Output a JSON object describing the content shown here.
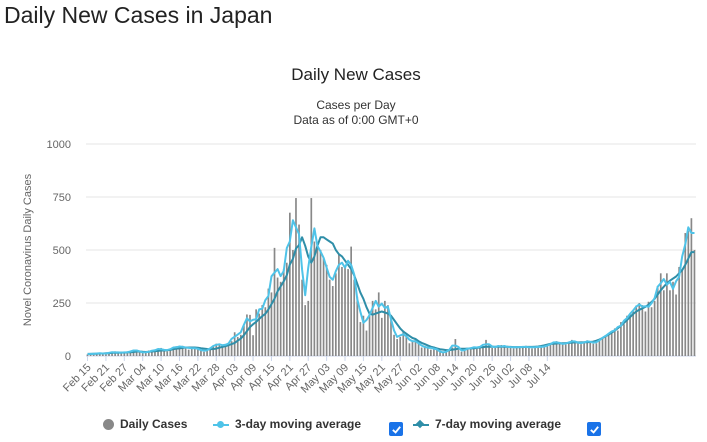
{
  "page": {
    "title": "Daily New Cases in Japan"
  },
  "chart_data": {
    "type": "bar",
    "title": "Daily New Cases",
    "subtitle_line1": "Cases per Day",
    "subtitle_line2": "Data as of 0:00 GMT+0",
    "ylabel": "Novel Coronavirus Daily Cases",
    "xlabel": "",
    "ylim": [
      0,
      1000
    ],
    "yticks": [
      0,
      250,
      500,
      750,
      1000
    ],
    "grid": true,
    "legend_position": "bottom",
    "x_tick_labels": [
      "Feb 15",
      "Feb 21",
      "Feb 27",
      "Mar 04",
      "Mar 10",
      "Mar 16",
      "Mar 22",
      "Mar 28",
      "Apr 03",
      "Apr 09",
      "Apr 15",
      "Apr 21",
      "Apr 27",
      "May 03",
      "May 09",
      "May 15",
      "May 21",
      "May 27",
      "Jun 02",
      "Jun 08",
      "Jun 14",
      "Jun 20",
      "Jun 26",
      "Jul 02",
      "Jul 08",
      "Jul 14"
    ],
    "first_date": "Feb 15",
    "colors": {
      "bars": "#888888",
      "ma3": "#4fc3e8",
      "ma7": "#2f8ea8",
      "grid": "#e6e6e6",
      "checkbox": "#1a73e8"
    },
    "series": [
      {
        "name": "Daily Cases",
        "values": [
          8,
          10,
          12,
          9,
          14,
          15,
          12,
          10,
          18,
          22,
          14,
          16,
          20,
          12,
          18,
          25,
          30,
          22,
          14,
          15,
          26,
          20,
          28,
          33,
          38,
          26,
          22,
          35,
          38,
          46,
          40,
          48,
          42,
          30,
          42,
          40,
          35,
          28,
          20,
          26,
          35,
          48,
          58,
          54,
          52,
          46,
          62,
          70,
          112,
          90,
          100,
          144,
          196,
          194,
          98,
          220,
          200,
          240,
          230,
          318,
          300,
          510,
          370,
          350,
          410,
          440,
          676,
          500,
          745,
          620,
          360,
          240,
          260,
          745,
          540,
          520,
          500,
          460,
          430,
          360,
          330,
          390,
          480,
          420,
          420,
          410,
          516,
          360,
          280,
          160,
          190,
          120,
          200,
          260,
          220,
          300,
          180,
          260,
          240,
          180,
          100,
          80,
          90,
          120,
          100,
          60,
          70,
          80,
          60,
          40,
          48,
          40,
          30,
          44,
          30,
          20,
          14,
          18,
          28,
          40,
          80,
          28,
          20,
          30,
          34,
          40,
          38,
          44,
          38,
          46,
          76,
          52,
          38,
          46,
          42,
          52,
          40,
          48,
          42,
          36,
          44,
          40,
          38,
          48,
          44,
          36,
          42,
          46,
          40,
          44,
          46,
          58,
          64,
          70,
          58,
          60,
          54,
          62,
          76,
          68,
          64,
          56,
          62,
          74,
          70,
          58,
          60,
          78,
          84,
          96,
          104,
          114,
          130,
          120,
          160,
          150,
          190,
          198,
          210,
          238,
          250,
          240,
          210,
          256,
          230,
          260,
          330,
          390,
          310,
          390,
          310,
          350,
          290,
          420,
          410,
          580,
          590,
          650,
          500
        ]
      },
      {
        "name": "3-day moving average",
        "values": [
          9,
          10,
          10,
          12,
          13,
          12,
          12,
          15,
          18,
          17,
          17,
          16,
          17,
          18,
          21,
          26,
          26,
          22,
          17,
          18,
          20,
          25,
          27,
          33,
          32,
          29,
          28,
          32,
          40,
          41,
          45,
          43,
          40,
          38,
          37,
          37,
          34,
          28,
          25,
          27,
          36,
          47,
          53,
          55,
          51,
          53,
          59,
          81,
          91,
          101,
          112,
          147,
          178,
          163,
          171,
          173,
          220,
          223,
          263,
          283,
          376,
          393,
          410,
          377,
          400,
          509,
          540,
          640,
          607,
          575,
          407,
          287,
          415,
          515,
          602,
          520,
          493,
          463,
          417,
          373,
          360,
          400,
          430,
          440,
          417,
          449,
          429,
          385,
          267,
          210,
          157,
          170,
          193,
          227,
          260,
          233,
          247,
          227,
          233,
          173,
          120,
          90,
          97,
          103,
          93,
          77,
          70,
          70,
          60,
          49,
          43,
          39,
          38,
          35,
          31,
          21,
          17,
          20,
          29,
          49,
          49,
          43,
          26,
          28,
          35,
          37,
          41,
          40,
          43,
          53,
          55,
          55,
          45,
          42,
          47,
          45,
          47,
          43,
          42,
          41,
          41,
          42,
          43,
          43,
          41,
          41,
          41,
          43,
          43,
          45,
          49,
          56,
          64,
          64,
          62,
          57,
          59,
          64,
          69,
          69,
          63,
          61,
          64,
          69,
          67,
          63,
          65,
          74,
          86,
          95,
          105,
          116,
          121,
          137,
          143,
          167,
          179,
          199,
          215,
          233,
          243,
          233,
          235,
          232,
          249,
          273,
          327,
          343,
          363,
          337,
          350,
          317,
          353,
          373,
          470,
          527,
          607,
          580,
          580
        ]
      },
      {
        "name": "7-day moving average",
        "values": [
          10,
          10,
          11,
          11,
          12,
          12,
          13,
          13,
          15,
          15,
          15,
          16,
          16,
          17,
          18,
          19,
          21,
          21,
          20,
          19,
          20,
          21,
          22,
          24,
          26,
          26,
          27,
          29,
          32,
          35,
          36,
          38,
          40,
          40,
          40,
          40,
          39,
          37,
          35,
          33,
          32,
          33,
          35,
          39,
          43,
          46,
          51,
          56,
          62,
          72,
          82,
          98,
          117,
          137,
          150,
          161,
          175,
          188,
          199,
          220,
          245,
          270,
          305,
          328,
          352,
          381,
          431,
          458,
          507,
          523,
          560,
          520,
          470,
          440,
          470,
          520,
          560,
          560,
          550,
          540,
          530,
          500,
          480,
          470,
          450,
          430,
          410,
          380,
          340,
          300,
          270,
          230,
          200,
          195,
          200,
          205,
          210,
          205,
          200,
          190,
          170,
          150,
          130,
          115,
          105,
          95,
          85,
          80,
          70,
          62,
          56,
          50,
          44,
          40,
          36,
          32,
          30,
          28,
          28,
          30,
          32,
          34,
          34,
          34,
          35,
          36,
          36,
          38,
          40,
          42,
          44,
          44,
          44,
          44,
          44,
          44,
          44,
          43,
          43,
          42,
          42,
          42,
          42,
          43,
          43,
          43,
          44,
          45,
          47,
          50,
          54,
          57,
          58,
          59,
          60,
          60,
          61,
          62,
          63,
          64,
          64,
          64,
          65,
          65,
          66,
          68,
          72,
          78,
          85,
          93,
          101,
          110,
          120,
          131,
          143,
          156,
          170,
          184,
          198,
          210,
          218,
          225,
          232,
          242,
          255,
          270,
          290,
          310,
          327,
          343,
          355,
          365,
          375,
          390,
          405,
          430,
          460,
          490,
          490
        ]
      }
    ]
  },
  "legend": {
    "daily": "Daily Cases",
    "ma3": "3-day moving average",
    "ma7": "7-day moving average"
  }
}
